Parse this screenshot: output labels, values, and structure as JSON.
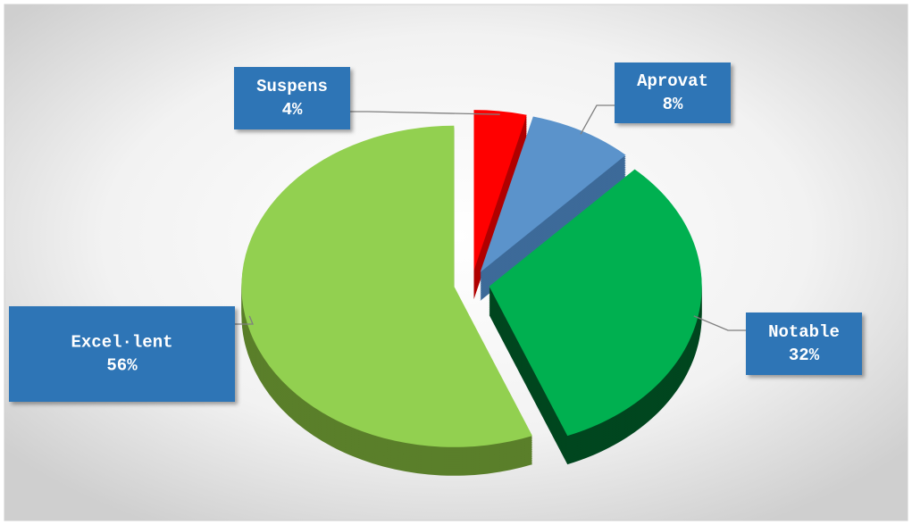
{
  "chart_data": {
    "type": "pie",
    "categories": [
      "Suspens",
      "Aprovat",
      "Notable",
      "Excel·lent"
    ],
    "values": [
      4,
      8,
      32,
      56
    ],
    "value_labels": [
      "4%",
      "8%",
      "32%",
      "56%"
    ],
    "colors": [
      "#ff0000",
      "#5b93cb",
      "#00b050",
      "#92d050"
    ],
    "side_colors": [
      "#b00000",
      "#3d6a99",
      "#00461f",
      "#5a7f2a"
    ]
  }
}
